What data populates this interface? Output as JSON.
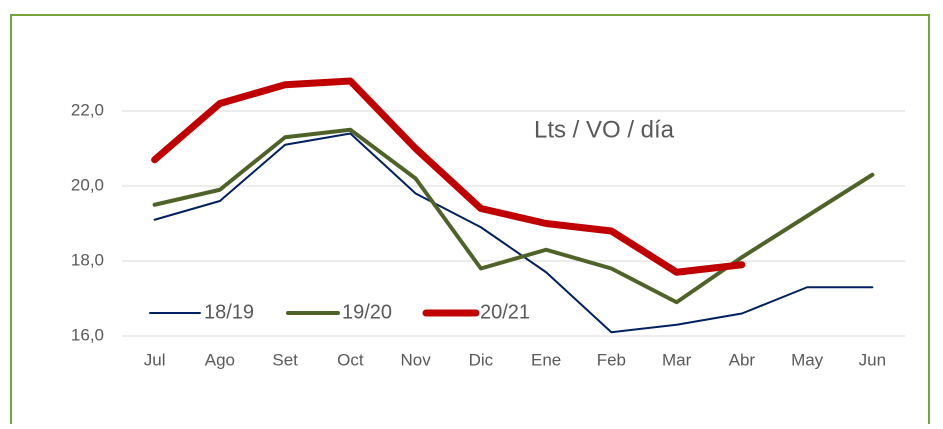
{
  "chart_data": {
    "type": "line",
    "annotation": "Lts / VO / día",
    "categories": [
      "Jul",
      "Ago",
      "Set",
      "Oct",
      "Nov",
      "Dic",
      "Ene",
      "Feb",
      "Mar",
      "Abr",
      "May",
      "Jun"
    ],
    "series": [
      {
        "name": "18/19",
        "color": "#002060",
        "values": [
          19.1,
          19.6,
          21.1,
          21.4,
          19.8,
          18.9,
          17.7,
          16.1,
          16.3,
          16.6,
          17.3,
          17.3
        ]
      },
      {
        "name": "19/20",
        "color": "#4f6228",
        "values": [
          19.5,
          19.9,
          21.3,
          21.5,
          20.2,
          17.8,
          18.3,
          17.8,
          16.9,
          18.1,
          19.2,
          20.3
        ]
      },
      {
        "name": "20/21",
        "color": "#c00000",
        "values": [
          20.7,
          22.2,
          22.7,
          22.8,
          21.0,
          19.4,
          19.0,
          18.8,
          17.7,
          17.9,
          null,
          null
        ]
      }
    ],
    "ylim": [
      16,
      23
    ],
    "yticks": [
      {
        "value": 16,
        "label": "16,0"
      },
      {
        "value": 18,
        "label": "18,0"
      },
      {
        "value": 20,
        "label": "20,0"
      },
      {
        "value": 22,
        "label": "22,0"
      }
    ],
    "grid": true,
    "legend": "lower left"
  }
}
